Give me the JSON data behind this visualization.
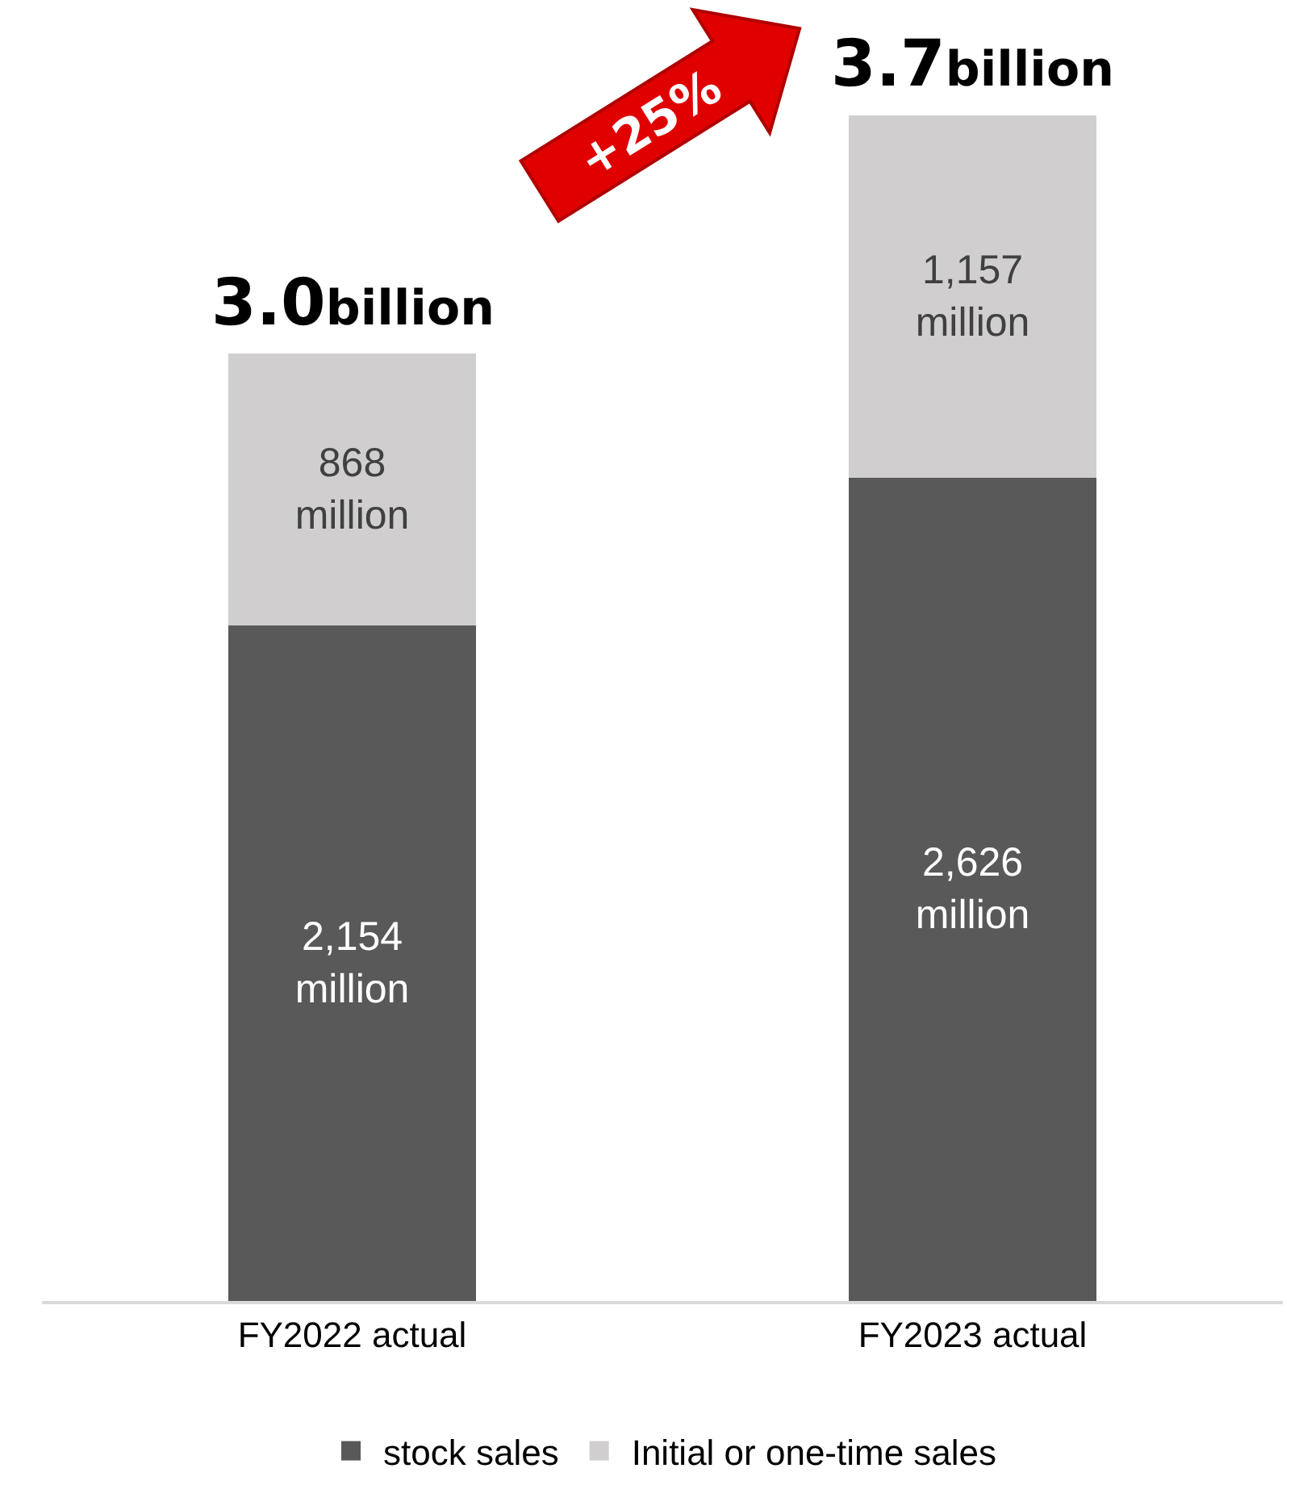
{
  "chart_data": {
    "type": "bar",
    "stacked": true,
    "categories": [
      "FY2022 actual",
      "FY2023 actual"
    ],
    "series": [
      {
        "name": "stock sales",
        "color": "#595959",
        "values": [
          2154000000,
          2626000000
        ],
        "value_labels": [
          "2,154\nmillion",
          "2,626\nmillion"
        ]
      },
      {
        "name": "Initial or one-time sales",
        "color": "#d0cece",
        "values": [
          868000000,
          1157000000
        ],
        "value_labels": [
          "868\nmillion",
          "1,157\nmillion"
        ]
      }
    ],
    "totals": [
      "3.0billion",
      "3.7billion"
    ],
    "annotations": [
      "+25%"
    ],
    "ylim": [
      0,
      4150000000
    ],
    "tick_labels": "x",
    "grid": false,
    "legend": "bottom"
  }
}
